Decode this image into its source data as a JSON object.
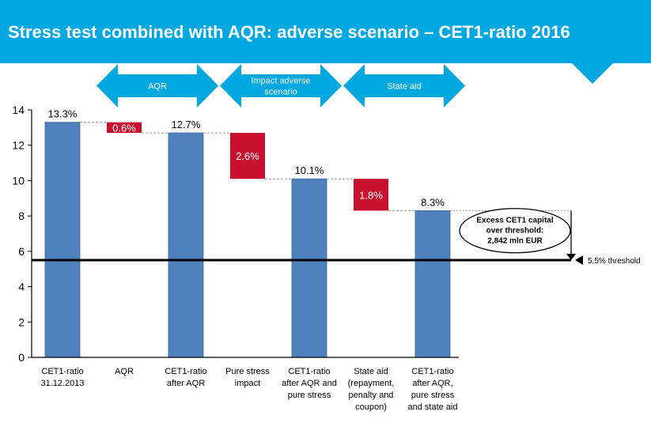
{
  "header": {
    "title": "Stress test combined with AQR: adverse scenario – CET1-ratio 2016"
  },
  "colors": {
    "header_bg": "#00a7e1",
    "level_bar": "#4f81bd",
    "delta_bar": "#c8102e",
    "phase_arrow": "#00a7e1"
  },
  "chart_data": {
    "type": "bar",
    "subtype": "waterfall",
    "categories": [
      [
        "CET1-ratio",
        "31.12.2013"
      ],
      [
        "AQR"
      ],
      [
        "CET1-ratio",
        "after AQR"
      ],
      [
        "Pure stress",
        "impact"
      ],
      [
        "CET1-ratio",
        "after AQR and",
        "pure stress"
      ],
      [
        "State aid",
        "(repayment,",
        "penalty and",
        "coupon)"
      ],
      [
        "CET1-ratio",
        "after AQR,",
        "pure stress",
        "and state aid"
      ]
    ],
    "steps": [
      {
        "kind": "level",
        "value": 13.3,
        "label": "13.3%"
      },
      {
        "kind": "delta",
        "from": 13.3,
        "to": 12.7,
        "label": "0.6%"
      },
      {
        "kind": "level",
        "value": 12.7,
        "label": "12.7%"
      },
      {
        "kind": "delta",
        "from": 12.7,
        "to": 10.1,
        "label": "2.6%"
      },
      {
        "kind": "level",
        "value": 10.1,
        "label": "10.1%"
      },
      {
        "kind": "delta",
        "from": 10.1,
        "to": 8.3,
        "label": "1.8%"
      },
      {
        "kind": "level",
        "value": 8.3,
        "label": "8.3%"
      }
    ],
    "ylim": [
      0,
      14
    ],
    "yticks": [
      0,
      2,
      4,
      6,
      8,
      10,
      12,
      14
    ],
    "threshold": {
      "value": 5.5,
      "label": "5,5% threshold"
    },
    "phases": [
      {
        "label": [
          "AQR"
        ],
        "from_index": 1,
        "to_index": 2
      },
      {
        "label": [
          "Impact adverse",
          "scenario"
        ],
        "from_index": 3,
        "to_index": 4
      },
      {
        "label": [
          "State aid"
        ],
        "from_index": 5,
        "to_index": 6
      }
    ],
    "callout": {
      "lines": [
        "Excess CET1 capital",
        "over threshold:",
        "2,842 mln EUR"
      ],
      "from": 8.3,
      "to": 5.5
    },
    "grid": false
  }
}
